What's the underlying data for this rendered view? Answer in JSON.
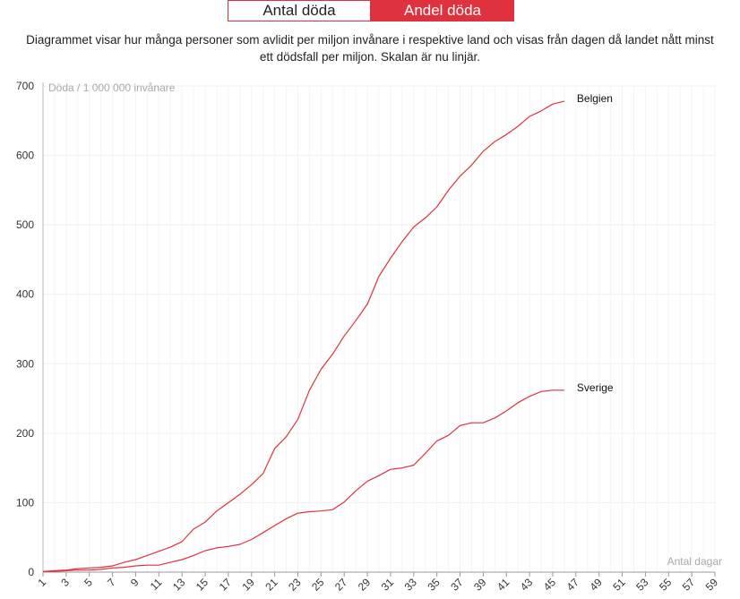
{
  "tabs": [
    {
      "label": "Antal döda",
      "active": false
    },
    {
      "label": "Andel döda",
      "active": true
    }
  ],
  "description": "Diagrammet visar hur många personer som avlidit per miljon invånare i respektive land och visas från dagen då landet nått minst ett dödsfall per miljon. Skalan är nu linjär.",
  "colors": {
    "accent": "#e0323e",
    "line": "#e0323e",
    "grid": "#efefef"
  },
  "chart_data": {
    "type": "line",
    "ylabel": "Döda / 1 000 000 invånare",
    "xlabel": "Antal dagar",
    "ylim": [
      0,
      700
    ],
    "xlim": [
      1,
      59
    ],
    "y_ticks": [
      0,
      100,
      200,
      300,
      400,
      500,
      600,
      700
    ],
    "x_ticks": [
      1,
      3,
      5,
      7,
      9,
      11,
      13,
      15,
      17,
      19,
      21,
      23,
      25,
      27,
      29,
      31,
      33,
      35,
      37,
      39,
      41,
      43,
      45,
      47,
      49,
      51,
      53,
      55,
      57,
      59
    ],
    "grid": true,
    "series": [
      {
        "name": "Belgien",
        "x": [
          1,
          2,
          3,
          4,
          5,
          6,
          7,
          8,
          9,
          10,
          11,
          12,
          13,
          14,
          15,
          16,
          17,
          18,
          19,
          20,
          21,
          22,
          23,
          24,
          25,
          26,
          27,
          28,
          29,
          30,
          31,
          32,
          33,
          34,
          35,
          36,
          37,
          38,
          39,
          40,
          41,
          42,
          43,
          44,
          45,
          46
        ],
        "values": [
          1,
          2,
          3,
          5,
          6,
          7,
          9,
          14,
          18,
          24,
          30,
          36,
          44,
          62,
          72,
          88,
          100,
          112,
          126,
          142,
          178,
          195,
          220,
          262,
          292,
          314,
          340,
          362,
          386,
          426,
          452,
          476,
          497,
          510,
          526,
          550,
          570,
          586,
          606,
          620,
          630,
          642,
          656,
          664,
          674,
          678
        ]
      },
      {
        "name": "Sverige",
        "x": [
          1,
          2,
          3,
          4,
          5,
          6,
          7,
          8,
          9,
          10,
          11,
          12,
          13,
          14,
          15,
          16,
          17,
          18,
          19,
          20,
          21,
          22,
          23,
          24,
          25,
          26,
          27,
          28,
          29,
          30,
          31,
          32,
          33,
          34,
          35,
          36,
          37,
          38,
          39,
          40,
          41,
          42,
          43,
          44,
          45,
          46
        ],
        "values": [
          1,
          1,
          2,
          3,
          3,
          4,
          6,
          7,
          9,
          10,
          10,
          14,
          18,
          24,
          31,
          35,
          37,
          40,
          47,
          57,
          67,
          77,
          85,
          87,
          88,
          90,
          101,
          117,
          131,
          139,
          148,
          150,
          154,
          171,
          189,
          197,
          211,
          215,
          215,
          222,
          232,
          244,
          253,
          260,
          262,
          262
        ]
      }
    ]
  }
}
